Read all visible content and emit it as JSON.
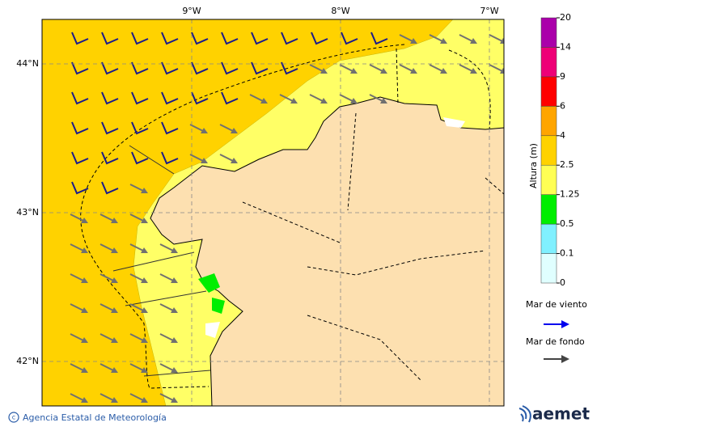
{
  "map": {
    "lon_labels": [
      "9°W",
      "8°W",
      "7°W"
    ],
    "lat_labels": [
      "44°N",
      "43°N",
      "42°N"
    ]
  },
  "colorbar": {
    "title": "Altura (m)",
    "ticks": [
      0,
      0.1,
      0.5,
      1.25,
      2.5,
      4,
      6,
      9,
      14,
      20
    ],
    "colors": [
      "#e0ffff",
      "#80f0ff",
      "#00ee00",
      "#ffff55",
      "#ffd200",
      "#ffa500",
      "#ff0000",
      "#ee0077",
      "#aa00aa"
    ]
  },
  "legend": {
    "wind_sea": "Mar de viento",
    "swell": "Mar de fondo"
  },
  "footer": {
    "credit": "Agencia Estatal de Meteorología",
    "logo": "aemet"
  }
}
